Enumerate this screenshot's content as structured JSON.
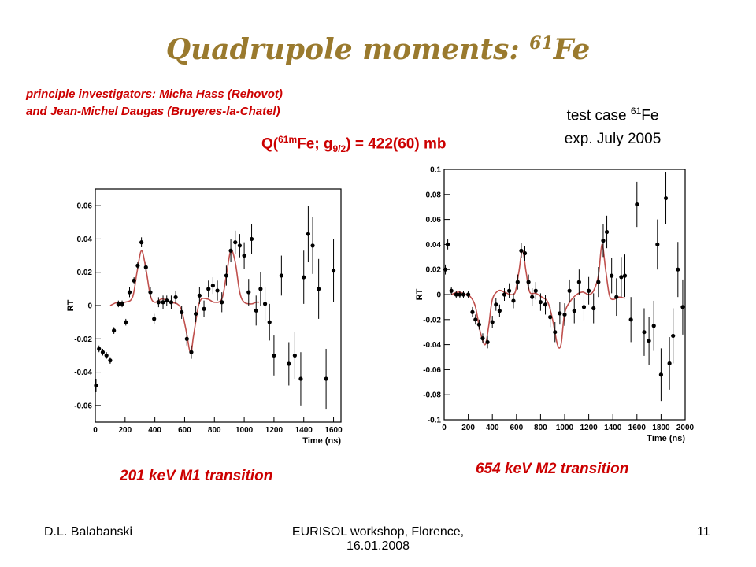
{
  "slide": {
    "title_text": "Quadrupole moments: ",
    "title_sup": "61",
    "title_tail": "Fe",
    "investigators_line1": "principle investigators: Micha Hass (Rehovot)",
    "investigators_line2": "and Jean-Michel Daugas (Bruyeres-la-Chatel)",
    "testcase_pre": "test case ",
    "testcase_sup": "61",
    "testcase_post": "Fe",
    "testcase_line2": "exp. July 2005",
    "q_prefix": "Q(",
    "q_sup": "61m",
    "q_mid": "Fe; g",
    "q_sub": "9/2",
    "q_suffix": ") = 422(60)  mb",
    "caption_left": "201 keV M1 transition",
    "caption_right": "654 keV M2 transition",
    "footer_left": "D.L. Balabanski",
    "footer_center_line1": "EURISOL workshop, Florence,",
    "footer_center_line2": "16.01.2008",
    "footer_right": "11"
  },
  "colors": {
    "title": "#9a7a2e",
    "highlight": "#cc0000",
    "fit": "#c0504d"
  },
  "chart_data": [
    {
      "type": "scatter",
      "xlabel": "Time (ns)",
      "ylabel": "RT",
      "xlim": [
        0,
        1650
      ],
      "ylim": [
        -0.07,
        0.07
      ],
      "xticks": [
        0,
        200,
        400,
        600,
        800,
        1000,
        1200,
        1400,
        1600
      ],
      "yticks": [
        -0.06,
        -0.04,
        -0.02,
        0,
        0.02,
        0.04,
        0.06
      ],
      "points": [
        {
          "x": 5,
          "y": -0.048,
          "e": 0.004
        },
        {
          "x": 25,
          "y": -0.026,
          "e": 0.002
        },
        {
          "x": 50,
          "y": -0.028,
          "e": 0.002
        },
        {
          "x": 75,
          "y": -0.03,
          "e": 0.002
        },
        {
          "x": 100,
          "y": -0.033,
          "e": 0.002
        },
        {
          "x": 125,
          "y": -0.015,
          "e": 0.002
        },
        {
          "x": 155,
          "y": 0.001,
          "e": 0.002
        },
        {
          "x": 180,
          "y": 0.001,
          "e": 0.002
        },
        {
          "x": 205,
          "y": -0.01,
          "e": 0.002
        },
        {
          "x": 230,
          "y": 0.008,
          "e": 0.003
        },
        {
          "x": 260,
          "y": 0.015,
          "e": 0.002
        },
        {
          "x": 285,
          "y": 0.024,
          "e": 0.002
        },
        {
          "x": 310,
          "y": 0.038,
          "e": 0.003
        },
        {
          "x": 340,
          "y": 0.023,
          "e": 0.003
        },
        {
          "x": 370,
          "y": 0.008,
          "e": 0.003
        },
        {
          "x": 395,
          "y": -0.008,
          "e": 0.003
        },
        {
          "x": 425,
          "y": 0.002,
          "e": 0.003
        },
        {
          "x": 455,
          "y": 0.002,
          "e": 0.004
        },
        {
          "x": 480,
          "y": 0.003,
          "e": 0.003
        },
        {
          "x": 510,
          "y": 0.002,
          "e": 0.004
        },
        {
          "x": 540,
          "y": 0.005,
          "e": 0.004
        },
        {
          "x": 580,
          "y": -0.004,
          "e": 0.004
        },
        {
          "x": 615,
          "y": -0.02,
          "e": 0.004
        },
        {
          "x": 645,
          "y": -0.028,
          "e": 0.004
        },
        {
          "x": 675,
          "y": -0.005,
          "e": 0.005
        },
        {
          "x": 700,
          "y": 0.006,
          "e": 0.005
        },
        {
          "x": 730,
          "y": -0.002,
          "e": 0.005
        },
        {
          "x": 760,
          "y": 0.01,
          "e": 0.005
        },
        {
          "x": 790,
          "y": 0.012,
          "e": 0.005
        },
        {
          "x": 820,
          "y": 0.009,
          "e": 0.006
        },
        {
          "x": 850,
          "y": 0.002,
          "e": 0.006
        },
        {
          "x": 880,
          "y": 0.018,
          "e": 0.006
        },
        {
          "x": 910,
          "y": 0.033,
          "e": 0.007
        },
        {
          "x": 940,
          "y": 0.038,
          "e": 0.007
        },
        {
          "x": 970,
          "y": 0.036,
          "e": 0.007
        },
        {
          "x": 1000,
          "y": 0.03,
          "e": 0.008
        },
        {
          "x": 1030,
          "y": 0.008,
          "e": 0.008
        },
        {
          "x": 1050,
          "y": 0.04,
          "e": 0.009
        },
        {
          "x": 1080,
          "y": -0.003,
          "e": 0.009
        },
        {
          "x": 1110,
          "y": 0.01,
          "e": 0.01
        },
        {
          "x": 1140,
          "y": 0.001,
          "e": 0.01
        },
        {
          "x": 1170,
          "y": -0.01,
          "e": 0.011
        },
        {
          "x": 1200,
          "y": -0.03,
          "e": 0.012
        },
        {
          "x": 1250,
          "y": 0.018,
          "e": 0.012
        },
        {
          "x": 1300,
          "y": -0.035,
          "e": 0.013
        },
        {
          "x": 1340,
          "y": -0.03,
          "e": 0.014
        },
        {
          "x": 1380,
          "y": -0.044,
          "e": 0.016
        },
        {
          "x": 1400,
          "y": 0.017,
          "e": 0.016
        },
        {
          "x": 1430,
          "y": 0.043,
          "e": 0.017
        },
        {
          "x": 1460,
          "y": 0.036,
          "e": 0.017
        },
        {
          "x": 1500,
          "y": 0.01,
          "e": 0.018
        },
        {
          "x": 1550,
          "y": -0.044,
          "e": 0.018
        },
        {
          "x": 1600,
          "y": 0.021,
          "e": 0.019
        }
      ],
      "fit": {
        "x": [
          100,
          150,
          200,
          250,
          280,
          310,
          340,
          370,
          400,
          450,
          500,
          550,
          580,
          610,
          640,
          660,
          700,
          750,
          800,
          850,
          880,
          910,
          940,
          970,
          1000,
          1050,
          1080,
          1100
        ],
        "y": [
          0.0,
          0.002,
          0.002,
          0.005,
          0.02,
          0.033,
          0.022,
          0.006,
          0.002,
          0.004,
          0.002,
          0.001,
          -0.003,
          -0.015,
          -0.029,
          -0.018,
          0.002,
          0.004,
          0.002,
          0.004,
          0.018,
          0.033,
          0.026,
          0.008,
          0.002,
          0.001,
          0.002,
          0.002
        ]
      }
    },
    {
      "type": "scatter",
      "xlabel": "Time (ns)",
      "ylabel": "RT",
      "xlim": [
        0,
        2000
      ],
      "ylim": [
        -0.1,
        0.1
      ],
      "xticks": [
        0,
        200,
        400,
        600,
        800,
        1000,
        1200,
        1400,
        1600,
        1800,
        2000
      ],
      "yticks": [
        -0.1,
        -0.08,
        -0.06,
        -0.04,
        -0.02,
        0,
        0.02,
        0.04,
        0.06,
        0.08,
        0.1
      ],
      "points": [
        {
          "x": 10,
          "y": 0.02,
          "e": 0.004
        },
        {
          "x": 30,
          "y": 0.04,
          "e": 0.004
        },
        {
          "x": 60,
          "y": 0.003,
          "e": 0.003
        },
        {
          "x": 100,
          "y": 0.0,
          "e": 0.003
        },
        {
          "x": 130,
          "y": 0.0,
          "e": 0.003
        },
        {
          "x": 160,
          "y": 0.0,
          "e": 0.003
        },
        {
          "x": 200,
          "y": 0.0,
          "e": 0.003
        },
        {
          "x": 235,
          "y": -0.014,
          "e": 0.004
        },
        {
          "x": 260,
          "y": -0.02,
          "e": 0.004
        },
        {
          "x": 290,
          "y": -0.024,
          "e": 0.004
        },
        {
          "x": 320,
          "y": -0.035,
          "e": 0.004
        },
        {
          "x": 360,
          "y": -0.038,
          "e": 0.005
        },
        {
          "x": 400,
          "y": -0.022,
          "e": 0.005
        },
        {
          "x": 430,
          "y": -0.008,
          "e": 0.005
        },
        {
          "x": 460,
          "y": -0.013,
          "e": 0.005
        },
        {
          "x": 500,
          "y": 0.0,
          "e": 0.005
        },
        {
          "x": 540,
          "y": 0.003,
          "e": 0.006
        },
        {
          "x": 575,
          "y": -0.005,
          "e": 0.006
        },
        {
          "x": 610,
          "y": 0.01,
          "e": 0.006
        },
        {
          "x": 640,
          "y": 0.035,
          "e": 0.006
        },
        {
          "x": 670,
          "y": 0.033,
          "e": 0.006
        },
        {
          "x": 700,
          "y": 0.01,
          "e": 0.006
        },
        {
          "x": 730,
          "y": -0.002,
          "e": 0.007
        },
        {
          "x": 760,
          "y": 0.003,
          "e": 0.007
        },
        {
          "x": 800,
          "y": -0.006,
          "e": 0.007
        },
        {
          "x": 840,
          "y": -0.008,
          "e": 0.008
        },
        {
          "x": 880,
          "y": -0.018,
          "e": 0.008
        },
        {
          "x": 920,
          "y": -0.03,
          "e": 0.008
        },
        {
          "x": 960,
          "y": -0.015,
          "e": 0.009
        },
        {
          "x": 1000,
          "y": -0.016,
          "e": 0.009
        },
        {
          "x": 1040,
          "y": 0.003,
          "e": 0.009
        },
        {
          "x": 1080,
          "y": -0.013,
          "e": 0.01
        },
        {
          "x": 1120,
          "y": 0.01,
          "e": 0.01
        },
        {
          "x": 1160,
          "y": -0.01,
          "e": 0.011
        },
        {
          "x": 1200,
          "y": 0.003,
          "e": 0.011
        },
        {
          "x": 1240,
          "y": -0.011,
          "e": 0.012
        },
        {
          "x": 1280,
          "y": 0.01,
          "e": 0.012
        },
        {
          "x": 1320,
          "y": 0.043,
          "e": 0.013
        },
        {
          "x": 1350,
          "y": 0.05,
          "e": 0.013
        },
        {
          "x": 1390,
          "y": 0.015,
          "e": 0.014
        },
        {
          "x": 1430,
          "y": -0.002,
          "e": 0.015
        },
        {
          "x": 1470,
          "y": 0.014,
          "e": 0.016
        },
        {
          "x": 1500,
          "y": 0.015,
          "e": 0.017
        },
        {
          "x": 1550,
          "y": -0.02,
          "e": 0.018
        },
        {
          "x": 1600,
          "y": 0.072,
          "e": 0.018
        },
        {
          "x": 1660,
          "y": -0.03,
          "e": 0.019
        },
        {
          "x": 1700,
          "y": -0.037,
          "e": 0.019
        },
        {
          "x": 1740,
          "y": -0.025,
          "e": 0.02
        },
        {
          "x": 1770,
          "y": 0.04,
          "e": 0.02
        },
        {
          "x": 1800,
          "y": -0.064,
          "e": 0.021
        },
        {
          "x": 1840,
          "y": 0.077,
          "e": 0.021
        },
        {
          "x": 1870,
          "y": -0.055,
          "e": 0.021
        },
        {
          "x": 1900,
          "y": -0.033,
          "e": 0.022
        },
        {
          "x": 1940,
          "y": 0.02,
          "e": 0.022
        },
        {
          "x": 1980,
          "y": -0.01,
          "e": 0.022
        }
      ],
      "fit": {
        "x": [
          60,
          120,
          180,
          220,
          260,
          300,
          340,
          370,
          400,
          450,
          500,
          550,
          590,
          620,
          650,
          680,
          710,
          760,
          810,
          860,
          900,
          940,
          970,
          1000,
          1050,
          1100,
          1150,
          1200,
          1240,
          1280,
          1310,
          1340,
          1370,
          1400,
          1450,
          1500
        ],
        "y": [
          0.0,
          0.002,
          0.0,
          -0.002,
          -0.01,
          -0.03,
          -0.04,
          -0.025,
          -0.004,
          0.003,
          0.002,
          0.0,
          0.002,
          0.018,
          0.035,
          0.018,
          0.002,
          0.001,
          -0.002,
          -0.006,
          -0.02,
          -0.04,
          -0.04,
          -0.015,
          -0.005,
          0.0,
          0.002,
          0.0,
          0.003,
          0.015,
          0.04,
          0.02,
          0.0,
          -0.004,
          -0.002,
          -0.003
        ]
      }
    }
  ]
}
